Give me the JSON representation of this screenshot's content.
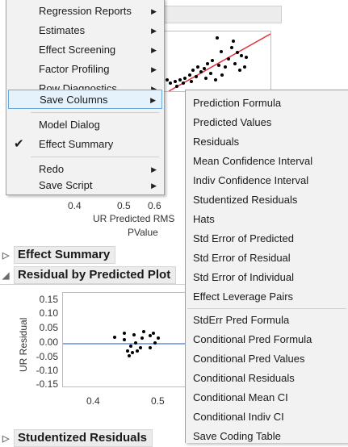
{
  "main_menu": {
    "items": [
      {
        "label": "Regression Reports",
        "submenu": true
      },
      {
        "label": "Estimates",
        "submenu": true
      },
      {
        "label": "Effect Screening",
        "submenu": true
      },
      {
        "label": "Factor Profiling",
        "submenu": true
      },
      {
        "label": "Row Diagnostics",
        "submenu": true
      },
      {
        "label": "Save Columns",
        "submenu": true,
        "highlighted": true
      },
      {
        "label": "Model Dialog",
        "submenu": false
      },
      {
        "label": "Effect Summary",
        "submenu": false,
        "checked": true
      },
      {
        "label": "Redo",
        "submenu": true
      },
      {
        "label": "Save Script",
        "submenu": true
      }
    ]
  },
  "save_columns_submenu": {
    "items": [
      "Prediction Formula",
      "Predicted Values",
      "Residuals",
      "Mean Confidence Interval",
      "Indiv Confidence Interval",
      "Studentized Residuals",
      "Hats",
      "Std Error of Predicted",
      "Std Error of Residual",
      "Std Error of Individual",
      "Effect Leverage Pairs",
      "StdErr Pred Formula",
      "Conditional Pred Formula",
      "Conditional Pred Values",
      "Conditional Residuals",
      "Conditional Mean CI",
      "Conditional Indiv CI",
      "Save Coding Table"
    ]
  },
  "actual_by_predicted": {
    "x_ticks": [
      "0.4",
      "0.5",
      "0.6"
    ],
    "axis_label_fragment": "UR Predicted RMS",
    "pvalue_fragment": "PValue",
    "fit_line_color": "#e0323c"
  },
  "sections": {
    "effect_summary": "Effect Summary",
    "residual_by_predicted": "Residual by Predicted Plot",
    "studentized_residuals": "Studentized Residuals"
  },
  "residual_plot": {
    "y_label": "UR Residual",
    "y_ticks": [
      "0.15",
      "0.10",
      "0.05",
      "0.00",
      "-0.05",
      "-0.10",
      "-0.15"
    ],
    "x_ticks": [
      "0.4",
      "0.5"
    ],
    "ref_line_color": "#3a78d6"
  },
  "colors": {
    "menu_bg": "#f2f2f2",
    "highlight_bg": "#e5f1fb",
    "highlight_border": "#6aa9dd"
  }
}
